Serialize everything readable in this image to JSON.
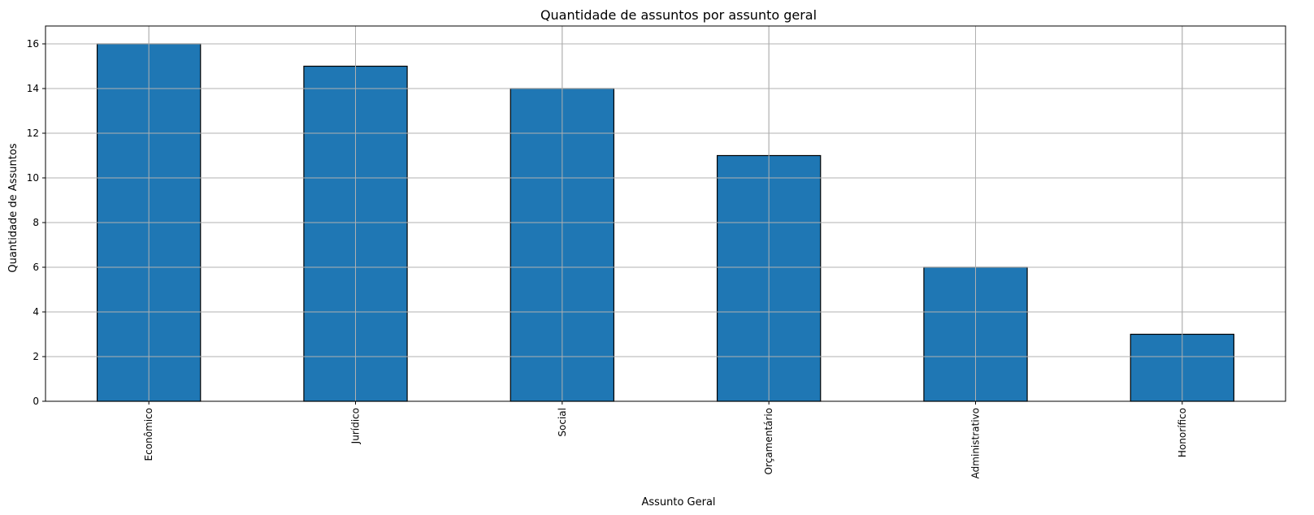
{
  "chart_data": {
    "type": "bar",
    "title": "Quantidade de assuntos por assunto geral",
    "xlabel": "Assunto Geral",
    "ylabel": "Quantidade de Assuntos",
    "categories": [
      "Econômico",
      "Jurídico",
      "Social",
      "Orçamentário",
      "Administrativo",
      "Honorífico"
    ],
    "values": [
      16,
      15,
      14,
      11,
      6,
      3
    ],
    "ylim": [
      0,
      16.8
    ],
    "yticks": [
      0,
      2,
      4,
      6,
      8,
      10,
      12,
      14,
      16
    ],
    "grid": true,
    "legend": "none",
    "colors": {
      "bar": "#1f77b4",
      "bar_edge": "#000000",
      "grid": "#b0b0b0"
    }
  }
}
